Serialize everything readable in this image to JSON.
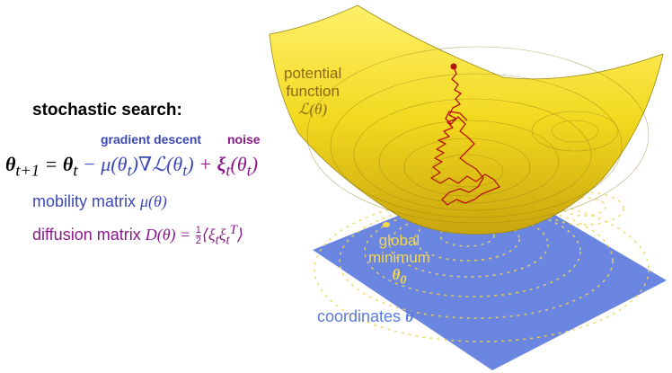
{
  "heading": "stochastic search:",
  "labels": {
    "gradient_descent": "gradient descent",
    "noise": "noise"
  },
  "equation": {
    "lhs": "θ",
    "lhs_sub": "t+1",
    "eq": " = ",
    "theta": "θ",
    "theta_sub": "t",
    "minus": " − ",
    "mu": "μ(θ",
    "mu_sub": "t",
    "mu_close": ")∇ℒ(θ",
    "grad_sub": "t",
    "grad_close": ")",
    "plus": " + ",
    "xi": "ξ",
    "xi_sub": "t",
    "xi_arg": "(θ",
    "xi_arg_sub": "t",
    "xi_close": ")"
  },
  "mobility": {
    "text": "mobility matrix ",
    "math": "μ(θ)"
  },
  "diffusion": {
    "text": "diffusion matrix ",
    "math": "D(θ) = ",
    "frac_num": "1",
    "frac_den": "2",
    "bracket": "⟨ξ",
    "sub1": "t",
    "xi2": "ξ",
    "sub2": "t",
    "sup2": "T",
    "close": "⟩"
  },
  "surface_labels": {
    "potential_line1": "potential",
    "potential_line2": "function",
    "potential_math": "ℒ(θ)",
    "global_line1": "global",
    "global_line2": "minimum",
    "global_math": "θ",
    "global_sub": "0",
    "coordinates_text": "coordinates ",
    "coordinates_math": "θ"
  },
  "colors": {
    "gradient": "#3b48b5",
    "noise": "#8b1a89",
    "surface": "#f2d91f",
    "plane": "#6a86e0",
    "path": "#b4130d",
    "minimum": "#f5d84a"
  }
}
